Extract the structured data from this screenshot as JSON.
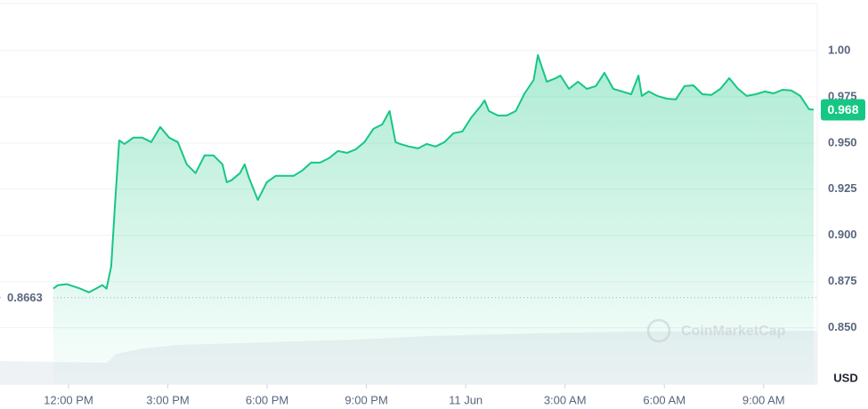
{
  "chart_data": {
    "type": "line",
    "x": [
      -0.46,
      -0.32,
      -0.05,
      0.35,
      0.62,
      0.83,
      1.02,
      1.15,
      1.29,
      1.42,
      1.53,
      1.69,
      1.96,
      2.23,
      2.5,
      2.77,
      3.04,
      3.3,
      3.57,
      3.84,
      4.11,
      4.38,
      4.65,
      4.78,
      4.92,
      5.18,
      5.32,
      5.45,
      5.72,
      5.99,
      6.26,
      6.53,
      6.8,
      7.06,
      7.33,
      7.6,
      7.87,
      8.14,
      8.41,
      8.68,
      8.94,
      9.21,
      9.48,
      9.7,
      9.88,
      10.02,
      10.29,
      10.56,
      10.82,
      11.09,
      11.36,
      11.63,
      11.9,
      12.17,
      12.44,
      12.57,
      12.7,
      12.97,
      13.24,
      13.51,
      13.78,
      14.05,
      14.18,
      14.45,
      14.72,
      14.86,
      15.12,
      15.39,
      15.66,
      15.93,
      16.19,
      16.46,
      16.73,
      17.0,
      17.22,
      17.32,
      17.53,
      17.79,
      18.08,
      18.35,
      18.61,
      18.88,
      19.15,
      19.42,
      19.69,
      19.96,
      20.23,
      20.49,
      20.76,
      21.03,
      21.3,
      21.57,
      21.84,
      22.11,
      22.37,
      22.51
    ],
    "values": [
      0.8712,
      0.8731,
      0.8736,
      0.8712,
      0.8692,
      0.8712,
      0.8731,
      0.8712,
      0.8832,
      0.9216,
      0.9514,
      0.9495,
      0.9529,
      0.9529,
      0.9505,
      0.9587,
      0.9529,
      0.9505,
      0.9385,
      0.9337,
      0.9433,
      0.9433,
      0.9385,
      0.9288,
      0.9298,
      0.9337,
      0.9385,
      0.9313,
      0.9192,
      0.9288,
      0.9322,
      0.9322,
      0.9322,
      0.9351,
      0.9394,
      0.9394,
      0.9418,
      0.9457,
      0.9447,
      0.9466,
      0.9505,
      0.9577,
      0.9601,
      0.9673,
      0.9505,
      0.9495,
      0.9481,
      0.9471,
      0.9495,
      0.9481,
      0.9505,
      0.9553,
      0.9563,
      0.9639,
      0.9697,
      0.9731,
      0.9673,
      0.9649,
      0.9649,
      0.9673,
      0.9769,
      0.9841,
      0.9976,
      0.9832,
      0.9851,
      0.9865,
      0.9793,
      0.9832,
      0.9793,
      0.9808,
      0.988,
      0.9793,
      0.9779,
      0.9764,
      0.9865,
      0.9755,
      0.9779,
      0.9755,
      0.974,
      0.9736,
      0.9808,
      0.9812,
      0.9764,
      0.976,
      0.9793,
      0.9851,
      0.9793,
      0.9755,
      0.9764,
      0.9779,
      0.9769,
      0.9788,
      0.9784,
      0.9755,
      0.9683,
      0.968
    ],
    "color": "#16c784",
    "xlim": [
      -2.07,
      22.62
    ],
    "xticks": [
      {
        "value": 0,
        "label": "12:00 PM"
      },
      {
        "value": 3,
        "label": "3:00 PM"
      },
      {
        "value": 6,
        "label": "6:00 PM"
      },
      {
        "value": 9,
        "label": "9:00 PM"
      },
      {
        "value": 12,
        "label": "11 Jun"
      },
      {
        "value": 15,
        "label": "3:00 AM"
      },
      {
        "value": 18,
        "label": "6:00 AM"
      },
      {
        "value": 21,
        "label": "9:00 AM"
      }
    ],
    "ylim": [
      0.82,
      1.025
    ],
    "yticks": [
      {
        "value": 1,
        "label": "1.00"
      },
      0.975,
      {
        "value": 0.95,
        "label": "0.950"
      },
      0.925,
      {
        "value": 0.9,
        "label": "0.900"
      },
      0.875,
      {
        "value": 0.85,
        "label": "0.850"
      }
    ],
    "grid": true,
    "open": 0.8663,
    "last": 0.968,
    "y_axis_label": "USD",
    "watermark": "CoinMarketCap"
  }
}
